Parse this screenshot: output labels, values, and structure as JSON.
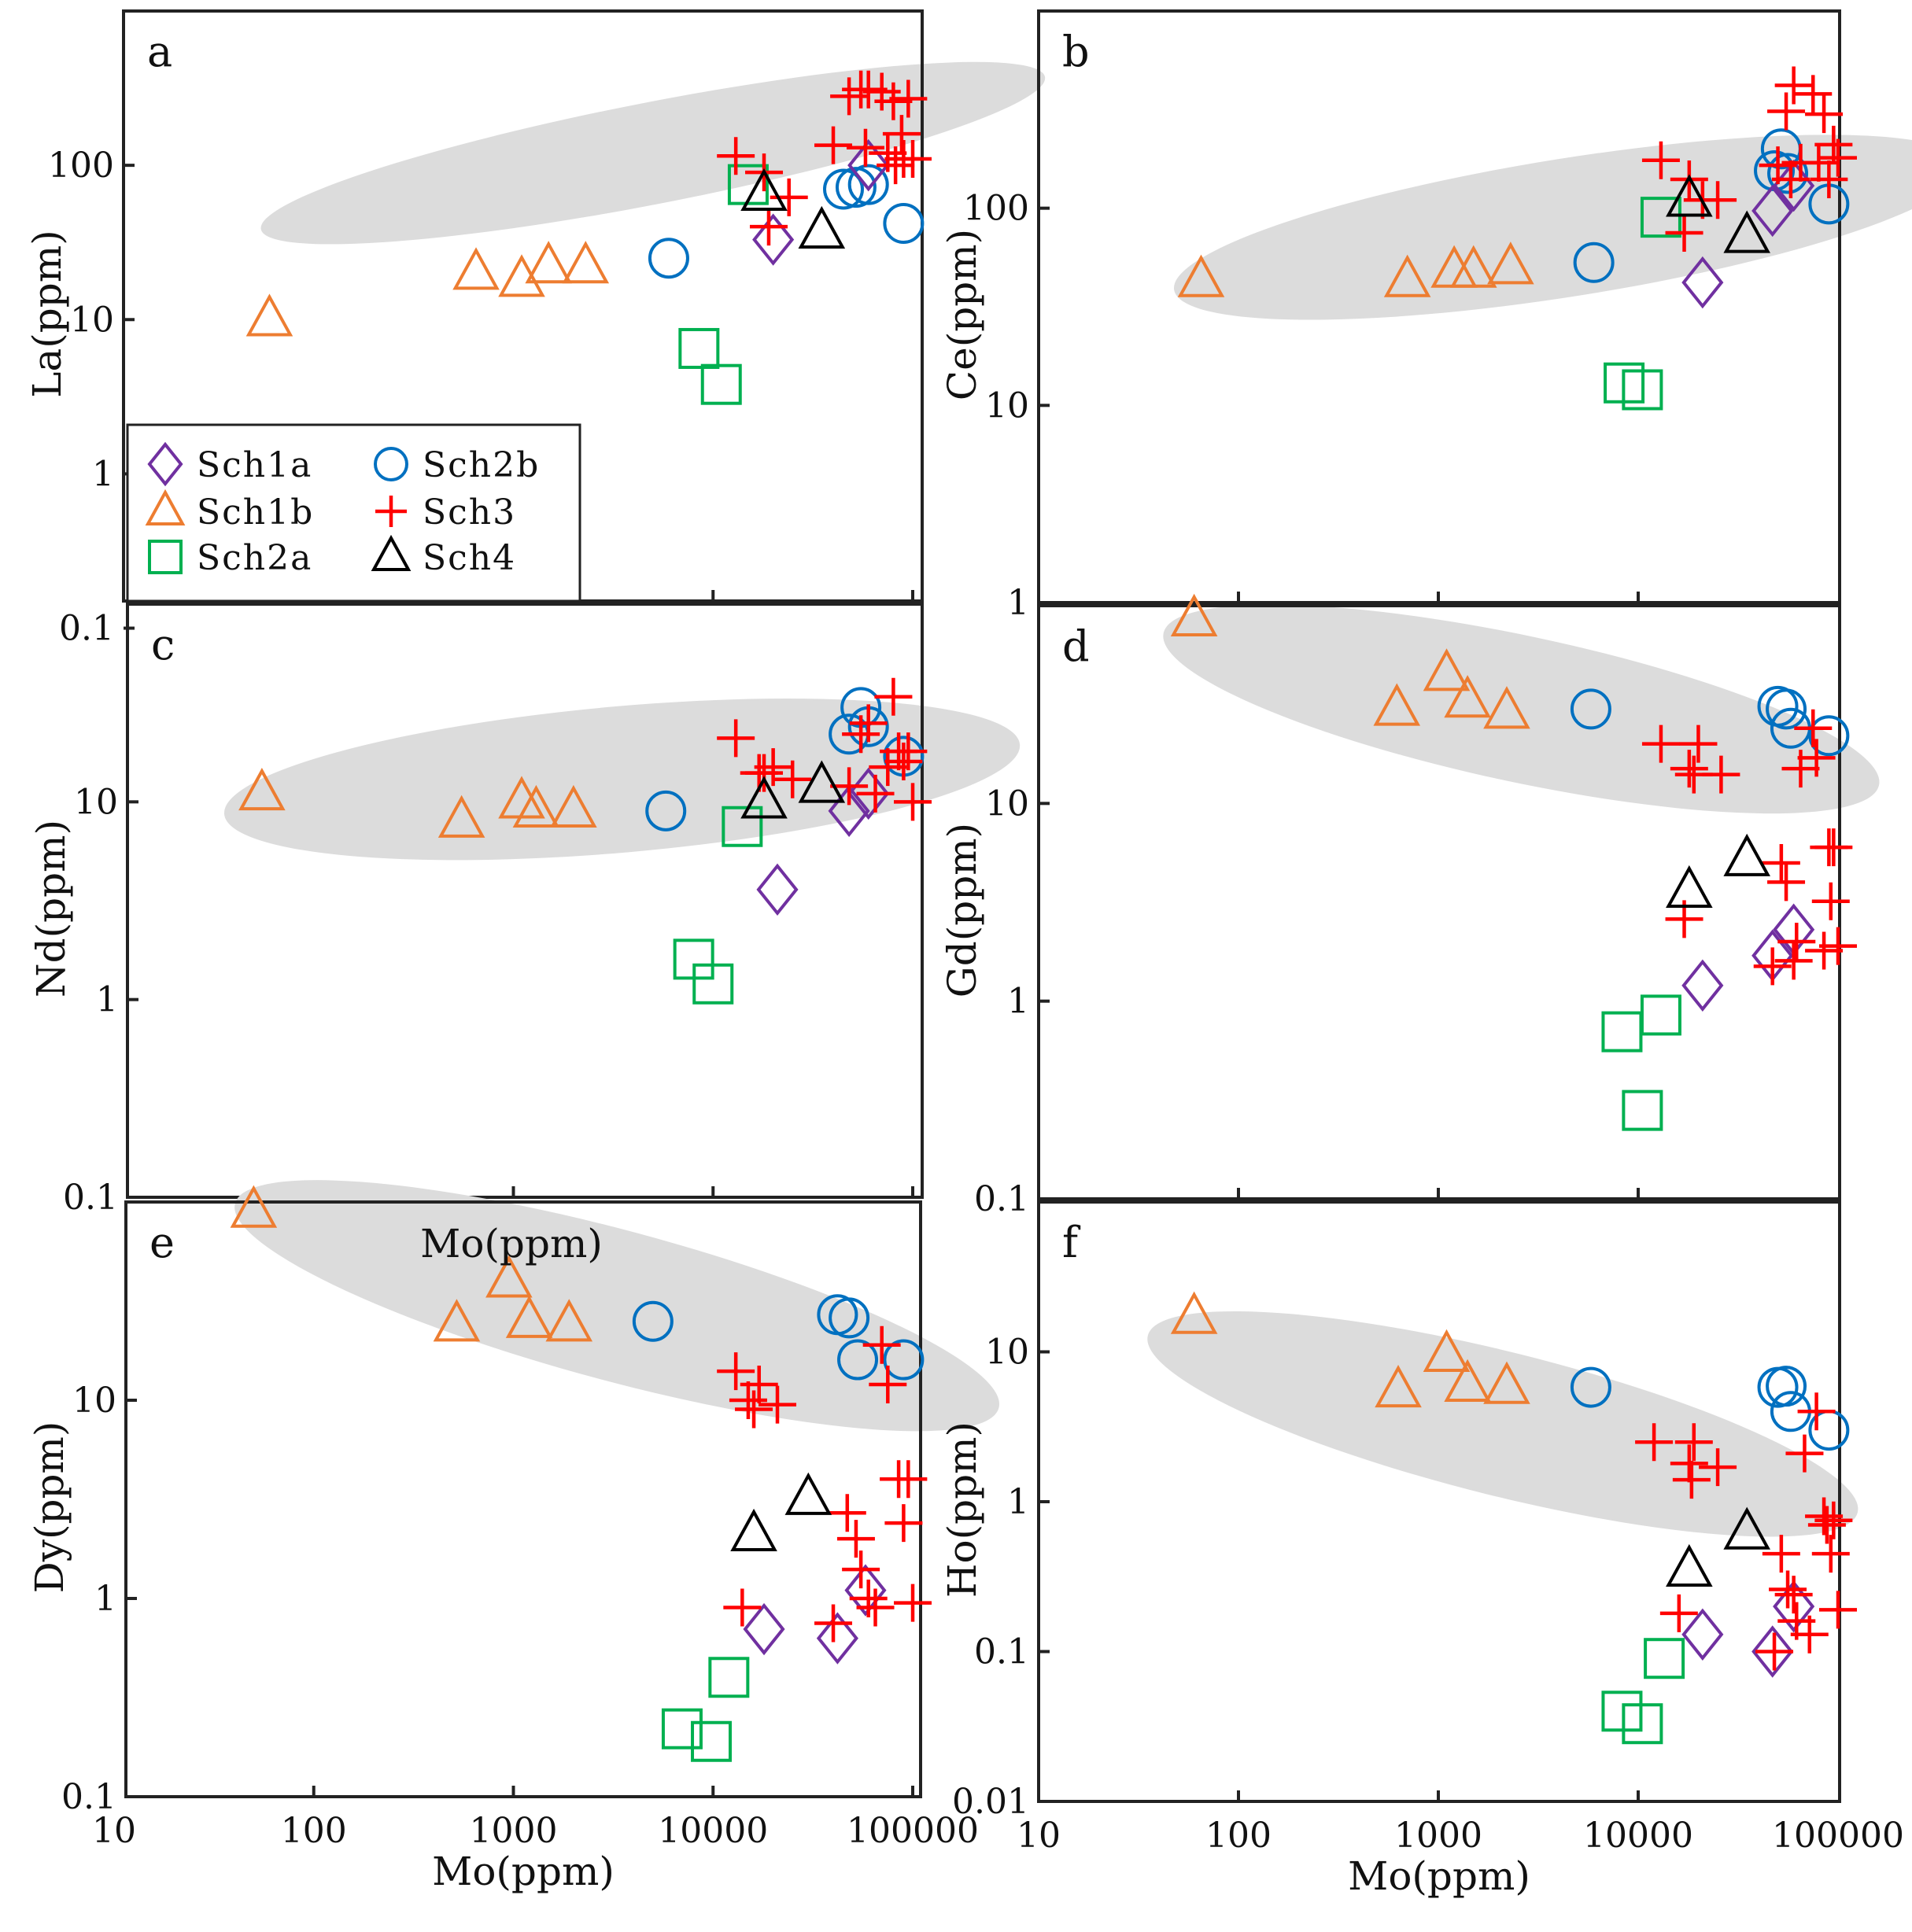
{
  "chart_data": {
    "type": "scatter",
    "title": "",
    "xscale": "log",
    "yscale": "log",
    "xlim": [
      10,
      100000
    ],
    "xlabel": "Mo(ppm)",
    "x_tick_labels": [
      "10",
      "100",
      "1000",
      "10000",
      "100000"
    ],
    "stray_annotation": "Mo(ppm)",
    "legend": {
      "placement": "panel a, lower-left",
      "entries": [
        {
          "key": "Sch1a",
          "label": "Sch1a",
          "marker": "diamond",
          "color": "#7030a0"
        },
        {
          "key": "Sch2b",
          "label": "Sch2b",
          "marker": "circle",
          "color": "#0070c0"
        },
        {
          "key": "Sch1b",
          "label": "Sch1b",
          "marker": "triangle",
          "color": "#ed7d31"
        },
        {
          "key": "Sch3",
          "label": "Sch3",
          "marker": "plus",
          "color": "#ff0000"
        },
        {
          "key": "Sch2a",
          "label": "Sch2a",
          "marker": "square",
          "color": "#00b050"
        },
        {
          "key": "Sch4",
          "label": "Sch4",
          "marker": "triangle",
          "color": "#000000"
        }
      ]
    },
    "panels": [
      {
        "letter": "a",
        "ylabel": "La(ppm)",
        "ylim": [
          0.1,
          1000
        ],
        "y_tick_labels": [
          "0.1",
          "1",
          "10",
          "100"
        ],
        "show_x_labels": false,
        "show_legend": true,
        "ellipse": {
          "center": [
            5000,
            120
          ],
          "rx_decades": 2.0,
          "ry_decades": 0.33,
          "angle_deg": 11
        },
        "series": {
          "Sch1a": [
            [
              20000,
              33
            ],
            [
              60000,
              100
            ]
          ],
          "Sch1b": [
            [
              60,
              10
            ],
            [
              650,
              20
            ],
            [
              1100,
              18
            ],
            [
              1500,
              22
            ],
            [
              2300,
              22
            ]
          ],
          "Sch2a": [
            [
              8500,
              6.5
            ],
            [
              11000,
              3.8
            ],
            [
              15000,
              75
            ]
          ],
          "Sch2b": [
            [
              6000,
              25
            ],
            [
              45000,
              70
            ],
            [
              52000,
              72
            ],
            [
              60000,
              75
            ],
            [
              90000,
              42
            ]
          ],
          "Sch3": [
            [
              13000,
              115
            ],
            [
              18000,
              90
            ],
            [
              19000,
              40
            ],
            [
              24000,
              62
            ],
            [
              40000,
              135
            ],
            [
              48000,
              280
            ],
            [
              55000,
              310
            ],
            [
              58000,
              130
            ],
            [
              60000,
              310
            ],
            [
              70000,
              300
            ],
            [
              75000,
              120
            ],
            [
              80000,
              260
            ],
            [
              82000,
              100
            ],
            [
              88000,
              160
            ],
            [
              90000,
              110
            ],
            [
              95000,
              270
            ],
            [
              100000,
              110
            ]
          ],
          "Sch4": [
            [
              18000,
              65
            ],
            [
              35000,
              37
            ]
          ]
        }
      },
      {
        "letter": "b",
        "ylabel": "Ce(ppm)",
        "ylim": [
          1,
          1000
        ],
        "y_tick_labels": [
          "1",
          "10",
          "100"
        ],
        "show_x_labels": false,
        "show_legend": false,
        "ellipse": {
          "center": [
            4500,
            80
          ],
          "rx_decades": 2.0,
          "ry_decades": 0.35,
          "angle_deg": 9
        },
        "series": {
          "Sch1a": [
            [
              21000,
              42
            ],
            [
              47000,
              97
            ],
            [
              60000,
              130
            ]
          ],
          "Sch1b": [
            [
              65,
              43
            ],
            [
              700,
              43
            ],
            [
              1200,
              48
            ],
            [
              1500,
              48
            ],
            [
              2300,
              50
            ]
          ],
          "Sch2a": [
            [
              8500,
              13
            ],
            [
              10500,
              12
            ],
            [
              13000,
              90
            ]
          ],
          "Sch2b": [
            [
              6000,
              53
            ],
            [
              48000,
              155
            ],
            [
              52000,
              200
            ],
            [
              56000,
              150
            ],
            [
              90000,
              105
            ]
          ],
          "Sch3": [
            [
              13000,
              175
            ],
            [
              17000,
              75
            ],
            [
              18000,
              140
            ],
            [
              21000,
              110
            ],
            [
              25000,
              110
            ],
            [
              50000,
              165
            ],
            [
              55000,
              310
            ],
            [
              58000,
              140
            ],
            [
              60000,
              420
            ],
            [
              65000,
              170
            ],
            [
              75000,
              380
            ],
            [
              80000,
              170
            ],
            [
              85000,
              300
            ],
            [
              90000,
              140
            ],
            [
              95000,
              210
            ],
            [
              100000,
              180
            ]
          ],
          "Sch4": [
            [
              18000,
              110
            ],
            [
              35000,
              72
            ]
          ]
        }
      },
      {
        "letter": "c",
        "ylabel": "Nd(ppm)",
        "ylim": [
          0.1,
          100
        ],
        "y_tick_labels": [
          "0.1",
          "1",
          "10"
        ],
        "show_x_labels": false,
        "show_legend": false,
        "ellipse": {
          "center": [
            3500,
            13
          ],
          "rx_decades": 2.0,
          "ry_decades": 0.37,
          "angle_deg": 5
        },
        "series": {
          "Sch1a": [
            [
              21000,
              3.6
            ],
            [
              48000,
              9
            ],
            [
              60000,
              11
            ]
          ],
          "Sch1b": [
            [
              55,
              11
            ],
            [
              550,
              8
            ],
            [
              1100,
              10
            ],
            [
              1300,
              9
            ],
            [
              2000,
              9
            ]
          ],
          "Sch2a": [
            [
              8000,
              1.6
            ],
            [
              10000,
              1.2
            ],
            [
              14000,
              7.5
            ]
          ],
          "Sch2b": [
            [
              5800,
              9
            ],
            [
              48000,
              22
            ],
            [
              55000,
              30
            ],
            [
              60000,
              24
            ],
            [
              90000,
              17
            ]
          ],
          "Sch3": [
            [
              13000,
              21
            ],
            [
              17000,
              14
            ],
            [
              18000,
              14
            ],
            [
              20000,
              15
            ],
            [
              25000,
              13
            ],
            [
              48000,
              12
            ],
            [
              55000,
              22
            ],
            [
              60000,
              25
            ],
            [
              65000,
              11
            ],
            [
              75000,
              15
            ],
            [
              80000,
              34
            ],
            [
              85000,
              18
            ],
            [
              90000,
              16
            ],
            [
              95000,
              18
            ],
            [
              100000,
              10
            ]
          ],
          "Sch4": [
            [
              18000,
              10
            ],
            [
              35000,
              12
            ]
          ]
        }
      },
      {
        "letter": "d",
        "ylabel": "Gd(ppm)",
        "ylim": [
          0.1,
          100
        ],
        "y_tick_labels": [
          "0.1",
          "1",
          "10"
        ],
        "show_x_labels": false,
        "show_legend": false,
        "ellipse": {
          "center": [
            2600,
            30
          ],
          "rx_decades": 1.83,
          "ry_decades": 0.37,
          "angle_deg": -12
        },
        "series": {
          "Sch1a": [
            [
              21000,
              1.2
            ],
            [
              47000,
              1.7
            ],
            [
              60000,
              2.3
            ]
          ],
          "Sch1b": [
            [
              60,
              85
            ],
            [
              620,
              30
            ],
            [
              1100,
              45
            ],
            [
              1400,
              33
            ],
            [
              2200,
              29
            ]
          ],
          "Sch2a": [
            [
              8300,
              0.7
            ],
            [
              10500,
              0.28
            ],
            [
              13000,
              0.85
            ]
          ],
          "Sch2b": [
            [
              5800,
              30
            ],
            [
              50000,
              31
            ],
            [
              55000,
              30
            ],
            [
              58000,
              24
            ],
            [
              90000,
              22
            ]
          ],
          "Sch3": [
            [
              13000,
              20
            ],
            [
              17000,
              2.6
            ],
            [
              18000,
              15
            ],
            [
              19000,
              14
            ],
            [
              20000,
              20
            ],
            [
              26000,
              14
            ],
            [
              47000,
              1.5
            ],
            [
              52000,
              5
            ],
            [
              55000,
              4
            ],
            [
              60000,
              1.6
            ],
            [
              62000,
              2
            ],
            [
              65000,
              15
            ],
            [
              75000,
              24
            ],
            [
              78000,
              17
            ],
            [
              85000,
              1.8
            ],
            [
              90000,
              6
            ],
            [
              92000,
              3.2
            ],
            [
              95000,
              6
            ],
            [
              100000,
              1.9
            ]
          ],
          "Sch4": [
            [
              18000,
              3.6
            ],
            [
              35000,
              5.2
            ]
          ]
        }
      },
      {
        "letter": "e",
        "ylabel": "Dy(ppm)",
        "ylim": [
          0.1,
          100
        ],
        "y_tick_labels": [
          "0.1",
          "1",
          "10"
        ],
        "show_x_labels": true,
        "show_legend": false,
        "ellipse": {
          "center": [
            3300,
            30
          ],
          "rx_decades": 1.98,
          "ry_decades": 0.38,
          "angle_deg": -15
        },
        "series": {
          "Sch1a": [
            [
              18000,
              0.7
            ],
            [
              42000,
              0.63
            ],
            [
              58000,
              1.1
            ]
          ],
          "Sch1b": [
            [
              50,
              90
            ],
            [
              520,
              24
            ],
            [
              950,
              40
            ],
            [
              1200,
              25
            ],
            [
              1900,
              24
            ]
          ],
          "Sch2a": [
            [
              7000,
              0.22
            ],
            [
              9800,
              0.19
            ],
            [
              12000,
              0.4
            ]
          ],
          "Sch2b": [
            [
              5000,
              25
            ],
            [
              42000,
              27
            ],
            [
              48000,
              26
            ],
            [
              53000,
              16
            ],
            [
              90000,
              16
            ]
          ],
          "Sch3": [
            [
              13000,
              14
            ],
            [
              14000,
              0.9
            ],
            [
              15000,
              10
            ],
            [
              16000,
              9
            ],
            [
              17000,
              12
            ],
            [
              21000,
              9.5
            ],
            [
              40000,
              0.75
            ],
            [
              47000,
              2.7
            ],
            [
              52000,
              2
            ],
            [
              55000,
              1.4
            ],
            [
              60000,
              1
            ],
            [
              65000,
              0.9
            ],
            [
              70000,
              19
            ],
            [
              75000,
              12
            ],
            [
              85000,
              4
            ],
            [
              90000,
              2.4
            ],
            [
              95000,
              4
            ],
            [
              100000,
              0.95
            ]
          ],
          "Sch4": [
            [
              16000,
              2.1
            ],
            [
              30000,
              3.2
            ]
          ]
        }
      },
      {
        "letter": "f",
        "ylabel": "Ho(ppm)",
        "ylim": [
          0.01,
          100
        ],
        "y_tick_labels": [
          "0.01",
          "0.1",
          "1",
          "10"
        ],
        "show_x_labels": true,
        "show_legend": false,
        "ellipse": {
          "center": [
            2100,
            3.3
          ],
          "rx_decades": 1.83,
          "ry_decades": 0.48,
          "angle_deg": -14
        },
        "series": {
          "Sch1a": [
            [
              21000,
              0.13
            ],
            [
              47000,
              0.1
            ],
            [
              60000,
              0.2
            ]
          ],
          "Sch1b": [
            [
              60,
              17
            ],
            [
              630,
              5.5
            ],
            [
              1100,
              9.5
            ],
            [
              1400,
              6
            ],
            [
              2200,
              5.8
            ]
          ],
          "Sch2a": [
            [
              8300,
              0.04
            ],
            [
              10500,
              0.033
            ],
            [
              13500,
              0.09
            ]
          ],
          "Sch2b": [
            [
              5800,
              5.8
            ],
            [
              50000,
              5.8
            ],
            [
              55000,
              5.9
            ],
            [
              58000,
              4
            ],
            [
              90000,
              3
            ]
          ],
          "Sch3": [
            [
              12000,
              2.5
            ],
            [
              16000,
              0.18
            ],
            [
              18000,
              1.8
            ],
            [
              18500,
              1.4
            ],
            [
              19000,
              2.5
            ],
            [
              25000,
              1.7
            ],
            [
              48000,
              0.1
            ],
            [
              52000,
              0.45
            ],
            [
              56000,
              0.26
            ],
            [
              60000,
              0.24
            ],
            [
              62000,
              0.16
            ],
            [
              68000,
              2.1
            ],
            [
              72000,
              0.13
            ],
            [
              78000,
              4
            ],
            [
              85000,
              0.8
            ],
            [
              88000,
              0.7
            ],
            [
              92000,
              0.45
            ],
            [
              95000,
              0.75
            ],
            [
              100000,
              0.19
            ]
          ],
          "Sch4": [
            [
              18000,
              0.35
            ],
            [
              35000,
              0.62
            ]
          ]
        }
      }
    ]
  }
}
